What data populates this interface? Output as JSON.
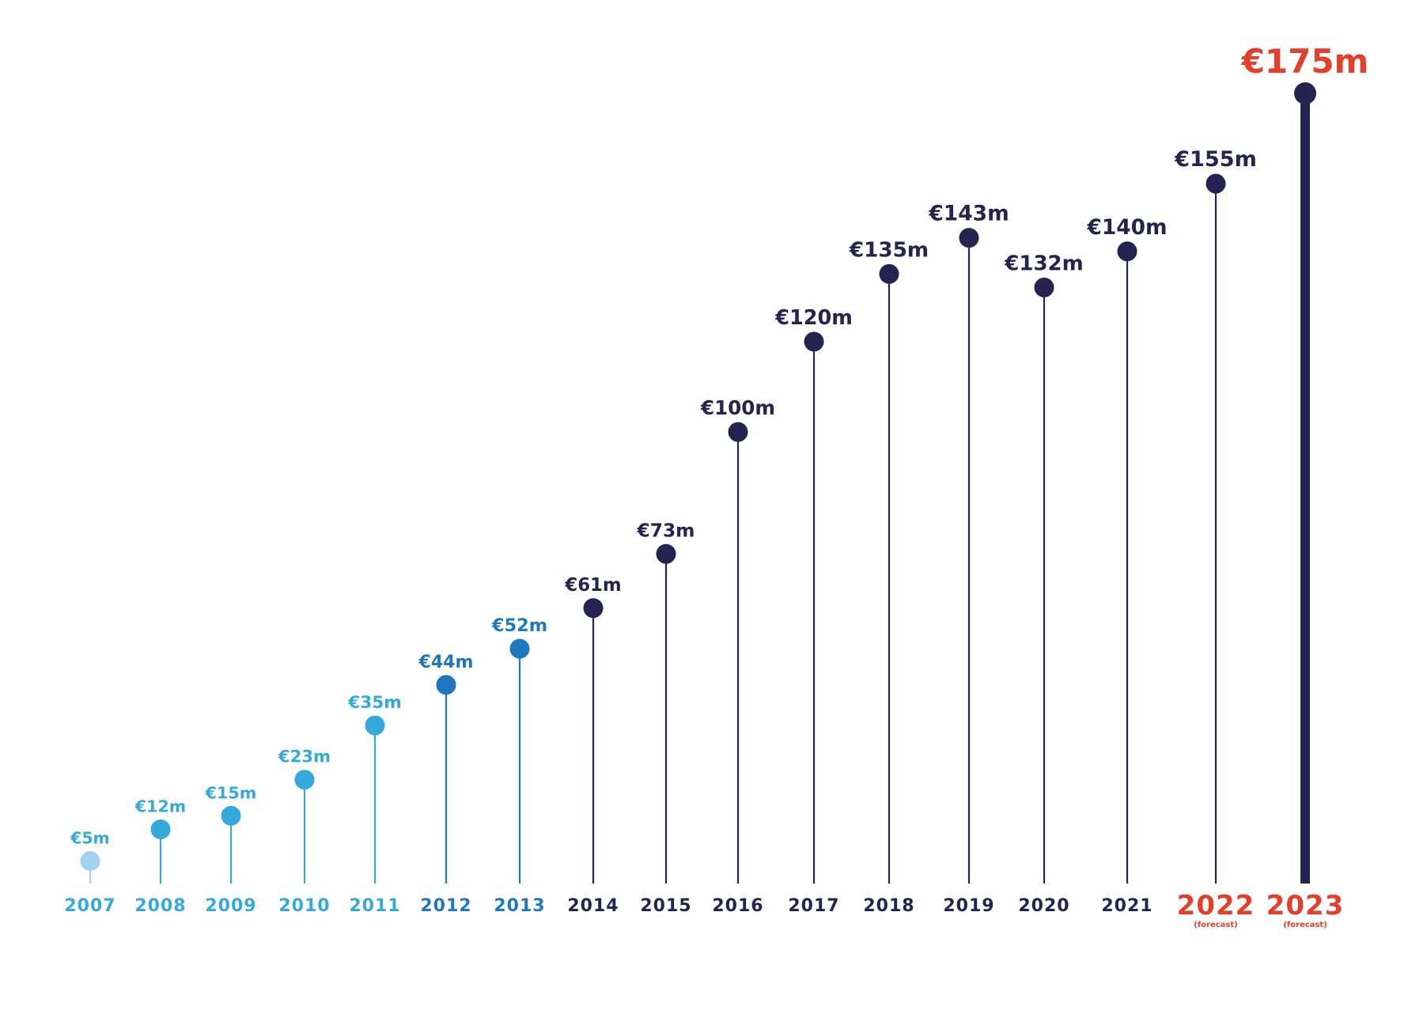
{
  "chart_data": {
    "type": "lollipop",
    "categories": [
      "2007",
      "2008",
      "2009",
      "2010",
      "2011",
      "2012",
      "2013",
      "2014",
      "2015",
      "2016",
      "2017",
      "2018",
      "2019",
      "2020",
      "2021",
      "2022",
      "2023"
    ],
    "values": [
      5,
      12,
      15,
      23,
      35,
      44,
      52,
      61,
      73,
      100,
      120,
      135,
      143,
      132,
      140,
      155,
      175
    ],
    "value_labels": [
      "€5m",
      "€12m",
      "€15m",
      "€23m",
      "€35m",
      "€44m",
      "€52m",
      "€61m",
      "€73m",
      "€100m",
      "€120m",
      "€135m",
      "€143m",
      "€132m",
      "€140m",
      "€155m",
      "€175m"
    ],
    "category_notes": [
      "",
      "",
      "",
      "",
      "",
      "",
      "",
      "",
      "",
      "",
      "",
      "",
      "",
      "",
      "",
      "(forecast)",
      "(forecast)"
    ],
    "colors": [
      "#9fd3ee",
      "#35a8dc",
      "#35a8dc",
      "#35a8dc",
      "#35a8dc",
      "#1f78bf",
      "#1f78bf",
      "#25234f",
      "#25234f",
      "#25234f",
      "#25234f",
      "#25234f",
      "#25234f",
      "#25234f",
      "#25234f",
      "#25234f",
      "#25234f"
    ],
    "label_colors": [
      "#35a8dc",
      "#35a8dc",
      "#35a8dc",
      "#35a8dc",
      "#35a8dc",
      "#1f78bf",
      "#1f78bf",
      "#25234f",
      "#25234f",
      "#25234f",
      "#25234f",
      "#25234f",
      "#25234f",
      "#25234f",
      "#25234f",
      "#25234f",
      "#e2402b"
    ],
    "year_colors": [
      "#35a8dc",
      "#35a8dc",
      "#35a8dc",
      "#35a8dc",
      "#35a8dc",
      "#1f78bf",
      "#1f78bf",
      "#25234f",
      "#25234f",
      "#25234f",
      "#25234f",
      "#25234f",
      "#25234f",
      "#25234f",
      "#25234f",
      "#e2402b",
      "#e2402b"
    ],
    "ylim": [
      0,
      175
    ],
    "grid": false,
    "legend": "none"
  }
}
